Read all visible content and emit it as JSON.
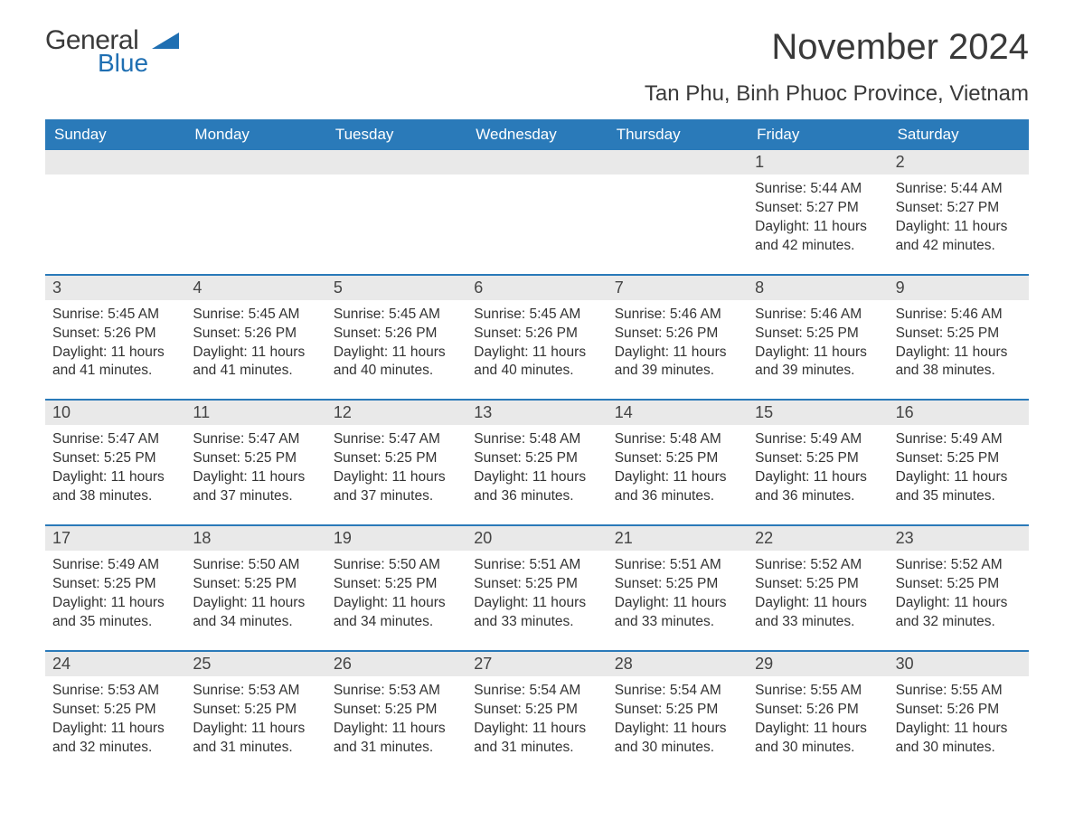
{
  "logo": {
    "word1": "General",
    "word2": "Blue",
    "mark_color": "#1f6fb2"
  },
  "title": "November 2024",
  "subtitle": "Tan Phu, Binh Phuoc Province, Vietnam",
  "colors": {
    "header_bg": "#2a7ab9",
    "header_text": "#ffffff",
    "daynum_bg": "#e9e9e9",
    "rule": "#2a7ab9",
    "body_text": "#333333"
  },
  "day_names": [
    "Sunday",
    "Monday",
    "Tuesday",
    "Wednesday",
    "Thursday",
    "Friday",
    "Saturday"
  ],
  "weeks": [
    [
      null,
      null,
      null,
      null,
      null,
      {
        "n": "1",
        "sr": "5:44 AM",
        "ss": "5:27 PM",
        "dl": "11 hours and 42 minutes."
      },
      {
        "n": "2",
        "sr": "5:44 AM",
        "ss": "5:27 PM",
        "dl": "11 hours and 42 minutes."
      }
    ],
    [
      {
        "n": "3",
        "sr": "5:45 AM",
        "ss": "5:26 PM",
        "dl": "11 hours and 41 minutes."
      },
      {
        "n": "4",
        "sr": "5:45 AM",
        "ss": "5:26 PM",
        "dl": "11 hours and 41 minutes."
      },
      {
        "n": "5",
        "sr": "5:45 AM",
        "ss": "5:26 PM",
        "dl": "11 hours and 40 minutes."
      },
      {
        "n": "6",
        "sr": "5:45 AM",
        "ss": "5:26 PM",
        "dl": "11 hours and 40 minutes."
      },
      {
        "n": "7",
        "sr": "5:46 AM",
        "ss": "5:26 PM",
        "dl": "11 hours and 39 minutes."
      },
      {
        "n": "8",
        "sr": "5:46 AM",
        "ss": "5:25 PM",
        "dl": "11 hours and 39 minutes."
      },
      {
        "n": "9",
        "sr": "5:46 AM",
        "ss": "5:25 PM",
        "dl": "11 hours and 38 minutes."
      }
    ],
    [
      {
        "n": "10",
        "sr": "5:47 AM",
        "ss": "5:25 PM",
        "dl": "11 hours and 38 minutes."
      },
      {
        "n": "11",
        "sr": "5:47 AM",
        "ss": "5:25 PM",
        "dl": "11 hours and 37 minutes."
      },
      {
        "n": "12",
        "sr": "5:47 AM",
        "ss": "5:25 PM",
        "dl": "11 hours and 37 minutes."
      },
      {
        "n": "13",
        "sr": "5:48 AM",
        "ss": "5:25 PM",
        "dl": "11 hours and 36 minutes."
      },
      {
        "n": "14",
        "sr": "5:48 AM",
        "ss": "5:25 PM",
        "dl": "11 hours and 36 minutes."
      },
      {
        "n": "15",
        "sr": "5:49 AM",
        "ss": "5:25 PM",
        "dl": "11 hours and 36 minutes."
      },
      {
        "n": "16",
        "sr": "5:49 AM",
        "ss": "5:25 PM",
        "dl": "11 hours and 35 minutes."
      }
    ],
    [
      {
        "n": "17",
        "sr": "5:49 AM",
        "ss": "5:25 PM",
        "dl": "11 hours and 35 minutes."
      },
      {
        "n": "18",
        "sr": "5:50 AM",
        "ss": "5:25 PM",
        "dl": "11 hours and 34 minutes."
      },
      {
        "n": "19",
        "sr": "5:50 AM",
        "ss": "5:25 PM",
        "dl": "11 hours and 34 minutes."
      },
      {
        "n": "20",
        "sr": "5:51 AM",
        "ss": "5:25 PM",
        "dl": "11 hours and 33 minutes."
      },
      {
        "n": "21",
        "sr": "5:51 AM",
        "ss": "5:25 PM",
        "dl": "11 hours and 33 minutes."
      },
      {
        "n": "22",
        "sr": "5:52 AM",
        "ss": "5:25 PM",
        "dl": "11 hours and 33 minutes."
      },
      {
        "n": "23",
        "sr": "5:52 AM",
        "ss": "5:25 PM",
        "dl": "11 hours and 32 minutes."
      }
    ],
    [
      {
        "n": "24",
        "sr": "5:53 AM",
        "ss": "5:25 PM",
        "dl": "11 hours and 32 minutes."
      },
      {
        "n": "25",
        "sr": "5:53 AM",
        "ss": "5:25 PM",
        "dl": "11 hours and 31 minutes."
      },
      {
        "n": "26",
        "sr": "5:53 AM",
        "ss": "5:25 PM",
        "dl": "11 hours and 31 minutes."
      },
      {
        "n": "27",
        "sr": "5:54 AM",
        "ss": "5:25 PM",
        "dl": "11 hours and 31 minutes."
      },
      {
        "n": "28",
        "sr": "5:54 AM",
        "ss": "5:25 PM",
        "dl": "11 hours and 30 minutes."
      },
      {
        "n": "29",
        "sr": "5:55 AM",
        "ss": "5:26 PM",
        "dl": "11 hours and 30 minutes."
      },
      {
        "n": "30",
        "sr": "5:55 AM",
        "ss": "5:26 PM",
        "dl": "11 hours and 30 minutes."
      }
    ]
  ],
  "labels": {
    "sunrise": "Sunrise: ",
    "sunset": "Sunset: ",
    "daylight": "Daylight: "
  }
}
